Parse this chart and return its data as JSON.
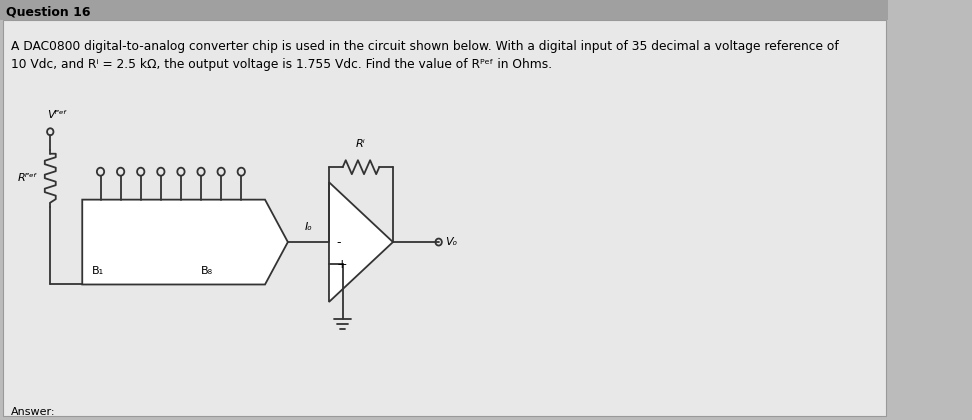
{
  "title": "Question 16",
  "desc1": "A DAC0800 digital-to-analog converter chip is used in the circuit shown below. With a digital input of 35 decimal a voltage reference of",
  "desc2": "10 Vdc, and Rⁱ = 2.5 kΩ, the output voltage is 1.755 Vdc. Find the value of Rᴾᵉᶠ in Ohms.",
  "answer_label": "Answer:",
  "bg_title": "#c8c8c8",
  "bg_body": "#e8e8e8",
  "line_color": "#333333",
  "Vref_label": "Vᴾᵉᶠ",
  "Rref_label": "Rᴾᵉᶠ",
  "B1_label": "B₁",
  "B8_label": "B₈",
  "Io_label": "Iₒ",
  "Rf_label": "Rⁱ",
  "Vo_label": "Vₒ",
  "minus_label": "-",
  "plus_label": "+"
}
